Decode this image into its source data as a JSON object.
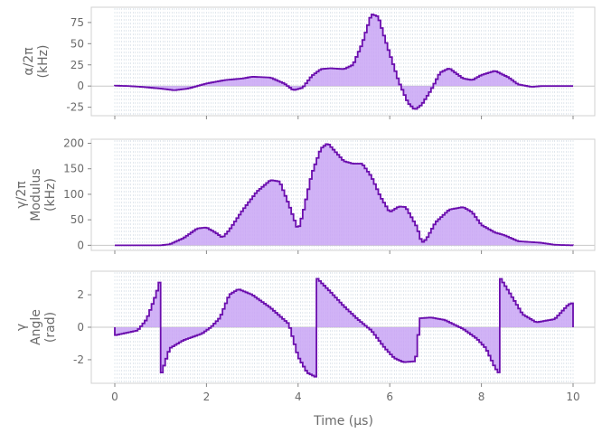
{
  "chart_data": {
    "type": "step",
    "xlabel": "Time (μs)",
    "xlim": [
      0,
      10
    ],
    "x_ticks": [
      "0",
      "2",
      "4",
      "6",
      "8",
      "10"
    ],
    "colors": {
      "line": "#6a0dad",
      "fill": "#c9a6f5",
      "grid": "#9fb3c8",
      "frame": "#d0d0d0",
      "zero": "#c8c8c8"
    },
    "grid": true,
    "panels": [
      {
        "ylabel": [
          "α/2π",
          "(kHz)"
        ],
        "ylim": [
          -35,
          93
        ],
        "y_ticks": [
          -25,
          0,
          25,
          50,
          75
        ],
        "points": [
          [
            0,
            0.5
          ],
          [
            0.3,
            0
          ],
          [
            0.6,
            -1
          ],
          [
            1.0,
            -3
          ],
          [
            1.3,
            -5
          ],
          [
            1.6,
            -3
          ],
          [
            2.0,
            3
          ],
          [
            2.4,
            7
          ],
          [
            2.8,
            9
          ],
          [
            3.0,
            11
          ],
          [
            3.4,
            10
          ],
          [
            3.7,
            3
          ],
          [
            3.9,
            -5
          ],
          [
            4.1,
            -2
          ],
          [
            4.3,
            12
          ],
          [
            4.5,
            20
          ],
          [
            4.7,
            21
          ],
          [
            5.0,
            20
          ],
          [
            5.2,
            25
          ],
          [
            5.4,
            50
          ],
          [
            5.6,
            85
          ],
          [
            5.75,
            82
          ],
          [
            5.9,
            55
          ],
          [
            6.2,
            5
          ],
          [
            6.4,
            -20
          ],
          [
            6.55,
            -28
          ],
          [
            6.7,
            -22
          ],
          [
            6.9,
            -5
          ],
          [
            7.1,
            16
          ],
          [
            7.3,
            21
          ],
          [
            7.6,
            9
          ],
          [
            7.8,
            7
          ],
          [
            8.0,
            13
          ],
          [
            8.3,
            18
          ],
          [
            8.6,
            10
          ],
          [
            8.8,
            2
          ],
          [
            9.1,
            -1
          ],
          [
            9.3,
            0
          ],
          [
            10,
            0
          ]
        ]
      },
      {
        "ylabel": [
          "γ/2π",
          "Modulus",
          "(kHz)"
        ],
        "ylim": [
          -10,
          208
        ],
        "y_ticks": [
          0,
          50,
          100,
          150,
          200
        ],
        "points": [
          [
            0,
            0
          ],
          [
            1.0,
            0
          ],
          [
            1.2,
            2
          ],
          [
            1.5,
            14
          ],
          [
            1.8,
            33
          ],
          [
            2.0,
            35
          ],
          [
            2.2,
            25
          ],
          [
            2.35,
            15
          ],
          [
            2.5,
            30
          ],
          [
            2.8,
            70
          ],
          [
            3.1,
            105
          ],
          [
            3.4,
            128
          ],
          [
            3.6,
            125
          ],
          [
            3.8,
            80
          ],
          [
            4.0,
            30
          ],
          [
            4.1,
            60
          ],
          [
            4.3,
            140
          ],
          [
            4.5,
            190
          ],
          [
            4.65,
            200
          ],
          [
            4.8,
            185
          ],
          [
            5.0,
            165
          ],
          [
            5.2,
            160
          ],
          [
            5.4,
            160
          ],
          [
            5.6,
            135
          ],
          [
            5.8,
            95
          ],
          [
            6.0,
            65
          ],
          [
            6.2,
            76
          ],
          [
            6.35,
            75
          ],
          [
            6.6,
            35
          ],
          [
            6.7,
            5
          ],
          [
            6.8,
            12
          ],
          [
            7.0,
            45
          ],
          [
            7.3,
            70
          ],
          [
            7.6,
            75
          ],
          [
            7.8,
            65
          ],
          [
            8.0,
            40
          ],
          [
            8.3,
            25
          ],
          [
            8.5,
            20
          ],
          [
            8.8,
            8
          ],
          [
            9.3,
            5
          ],
          [
            9.6,
            1
          ],
          [
            10,
            0
          ]
        ]
      },
      {
        "ylabel": [
          "γ",
          "Angle",
          "(rad)"
        ],
        "ylim": [
          -3.45,
          3.45
        ],
        "y_ticks": [
          -2,
          0,
          2
        ],
        "points": [
          [
            0,
            -0.5
          ],
          [
            0.5,
            -0.2
          ],
          [
            0.7,
            0.5
          ],
          [
            0.9,
            2.0
          ],
          [
            0.98,
            2.8
          ],
          [
            1.0,
            -3.0
          ],
          [
            1.2,
            -1.3
          ],
          [
            1.5,
            -0.8
          ],
          [
            1.9,
            -0.4
          ],
          [
            2.1,
            0
          ],
          [
            2.3,
            0.6
          ],
          [
            2.5,
            2.0
          ],
          [
            2.7,
            2.35
          ],
          [
            3.0,
            2.0
          ],
          [
            3.4,
            1.2
          ],
          [
            3.8,
            0.2
          ],
          [
            4.0,
            -1.8
          ],
          [
            4.2,
            -2.8
          ],
          [
            4.38,
            -3.05
          ],
          [
            4.42,
            3.0
          ],
          [
            4.7,
            2.2
          ],
          [
            5.0,
            1.3
          ],
          [
            5.3,
            0.5
          ],
          [
            5.6,
            -0.2
          ],
          [
            5.9,
            -1.3
          ],
          [
            6.1,
            -1.9
          ],
          [
            6.3,
            -2.15
          ],
          [
            6.55,
            -2.1
          ],
          [
            6.6,
            -1.5
          ],
          [
            6.65,
            0.55
          ],
          [
            6.9,
            0.6
          ],
          [
            7.2,
            0.45
          ],
          [
            7.6,
            -0.1
          ],
          [
            7.9,
            -0.7
          ],
          [
            8.1,
            -1.3
          ],
          [
            8.3,
            -2.5
          ],
          [
            8.38,
            -2.8
          ],
          [
            8.42,
            3.0
          ],
          [
            8.6,
            2.2
          ],
          [
            8.9,
            0.8
          ],
          [
            9.2,
            0.3
          ],
          [
            9.6,
            0.5
          ],
          [
            9.9,
            1.4
          ],
          [
            10,
            1.5
          ]
        ]
      }
    ]
  }
}
